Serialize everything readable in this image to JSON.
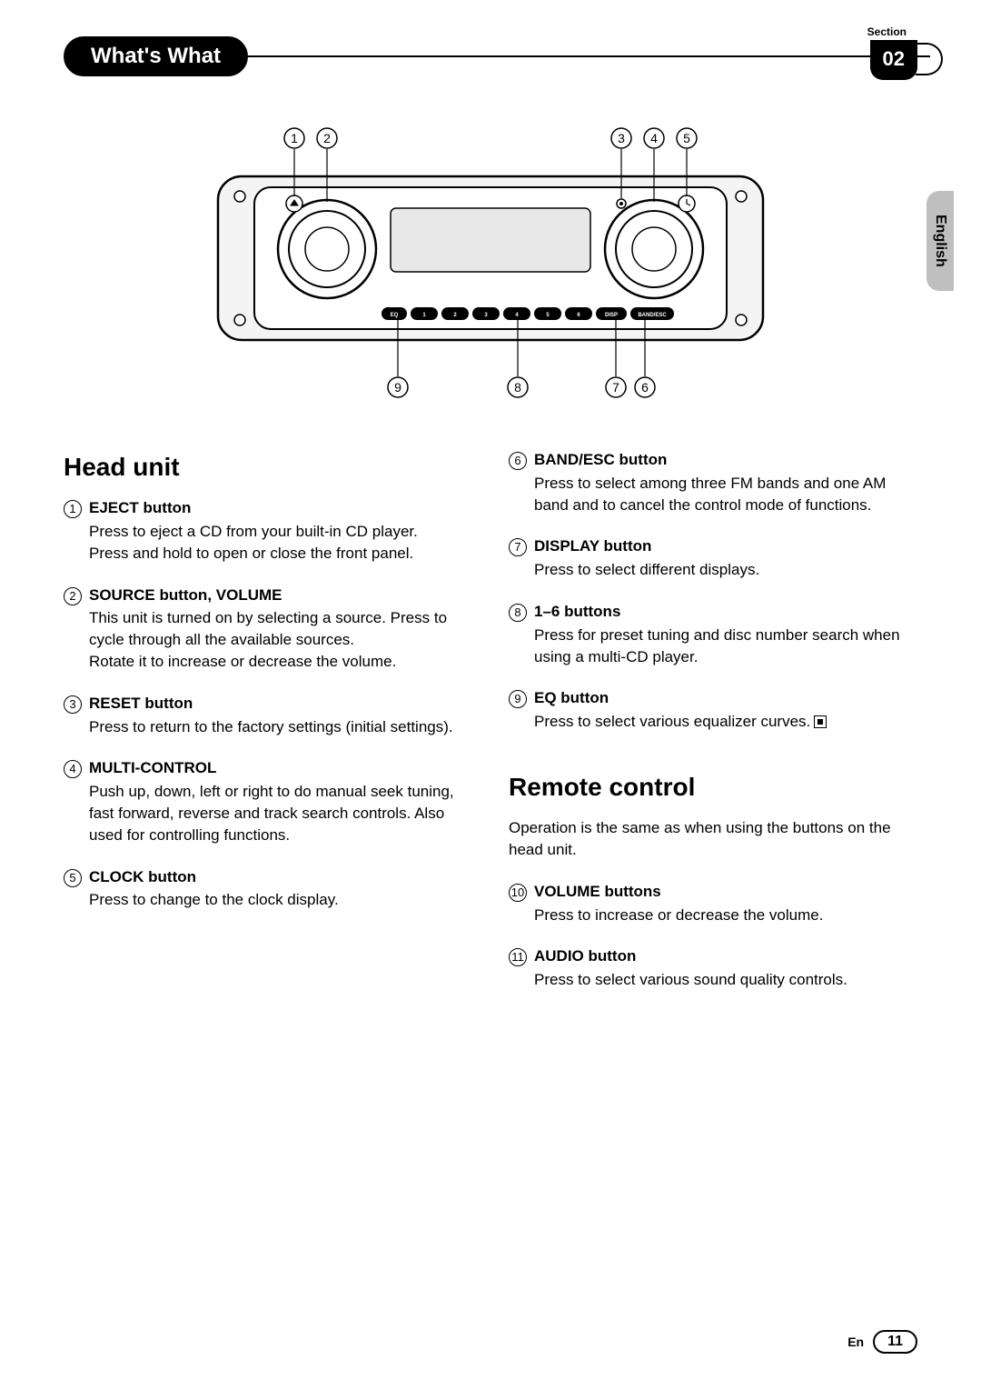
{
  "header": {
    "section_label": "Section",
    "title": "What's What",
    "section_number": "02",
    "language_tab": "English"
  },
  "diagram": {
    "top_callouts": [
      "1",
      "2",
      "3",
      "4",
      "5"
    ],
    "bottom_callouts": [
      "9",
      "8",
      "7",
      "6"
    ],
    "button_row": [
      "EQ",
      "1",
      "2",
      "3",
      "4",
      "5",
      "6",
      "DISP",
      "BAND/ESC"
    ],
    "colors": {
      "outline": "#000000",
      "fill_light": "#f4f4f4",
      "fill_white": "#ffffff",
      "fill_dark": "#bfbfbf"
    }
  },
  "left_column": {
    "heading": "Head unit",
    "items": [
      {
        "num": "1",
        "title": "EJECT button",
        "body": "Press to eject a CD from your built-in CD player.\nPress and hold to open or close the front panel."
      },
      {
        "num": "2",
        "title": "SOURCE button, VOLUME",
        "body": "This unit is turned on by selecting a source. Press to cycle through all the available sources.\nRotate it to increase or decrease the volume."
      },
      {
        "num": "3",
        "title": "RESET button",
        "body": "Press to return to the factory settings (initial settings)."
      },
      {
        "num": "4",
        "title": "MULTI-CONTROL",
        "body": "Push up, down, left or right to do manual seek tuning, fast forward, reverse and track search controls. Also used for controlling functions."
      },
      {
        "num": "5",
        "title": "CLOCK button",
        "body": "Press to change to the clock display."
      }
    ]
  },
  "right_column": {
    "top_items": [
      {
        "num": "6",
        "title": "BAND/ESC button",
        "body": "Press to select among three FM bands and one AM band and to cancel the control mode of functions."
      },
      {
        "num": "7",
        "title": "DISPLAY button",
        "body": "Press to select different displays."
      },
      {
        "num": "8",
        "title": "1–6 buttons",
        "body": "Press for preset tuning and disc number search when using a multi-CD player."
      },
      {
        "num": "9",
        "title": "EQ button",
        "body": "Press to select various equalizer curves.",
        "end_mark": true
      }
    ],
    "heading2": "Remote control",
    "intro": "Operation is the same as when using the buttons on the head unit.",
    "bottom_items": [
      {
        "num": "10",
        "title": "VOLUME buttons",
        "body": "Press to increase or decrease the volume."
      },
      {
        "num": "11",
        "title": "AUDIO button",
        "body": "Press to select various sound quality controls."
      }
    ]
  },
  "footer": {
    "lang_code": "En",
    "page_number": "11"
  }
}
